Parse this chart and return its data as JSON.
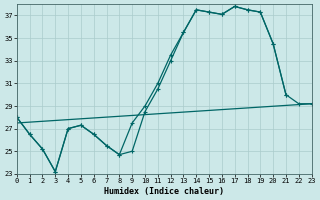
{
  "bg_color": "#cce8e8",
  "grid_color": "#aacccc",
  "line_color": "#006666",
  "xlabel": "Humidex (Indice chaleur)",
  "xlim": [
    0,
    23
  ],
  "ylim": [
    23,
    38
  ],
  "yticks": [
    23,
    25,
    27,
    29,
    31,
    33,
    35,
    37
  ],
  "xticks": [
    0,
    1,
    2,
    3,
    4,
    5,
    6,
    7,
    8,
    9,
    10,
    11,
    12,
    13,
    14,
    15,
    16,
    17,
    18,
    19,
    20,
    21,
    22,
    23
  ],
  "curve1_x": [
    0,
    1,
    2,
    3,
    4,
    5,
    6,
    7,
    8,
    9,
    10,
    11,
    12,
    13,
    14,
    15,
    16,
    17,
    18,
    19,
    20,
    21
  ],
  "curve1_y": [
    28.0,
    26.5,
    25.2,
    23.2,
    27.0,
    27.3,
    26.5,
    25.5,
    24.7,
    27.5,
    29.0,
    31.0,
    33.5,
    35.5,
    37.5,
    37.3,
    37.1,
    37.8,
    37.5,
    37.3,
    34.5,
    30.0
  ],
  "curve2_x": [
    0,
    1,
    2,
    3,
    4,
    5,
    6,
    7,
    8,
    9,
    10,
    11,
    12,
    13,
    14,
    15,
    16,
    17,
    18,
    19,
    20,
    21,
    22,
    23
  ],
  "curve2_y": [
    28.0,
    26.5,
    25.2,
    23.2,
    27.0,
    27.3,
    26.5,
    25.5,
    24.7,
    25.0,
    28.5,
    30.5,
    33.0,
    35.5,
    37.5,
    37.3,
    37.1,
    37.8,
    37.5,
    37.3,
    34.5,
    30.0,
    29.2,
    29.2
  ],
  "curve3_x": [
    0,
    23
  ],
  "curve3_y": [
    27.5,
    29.2
  ]
}
